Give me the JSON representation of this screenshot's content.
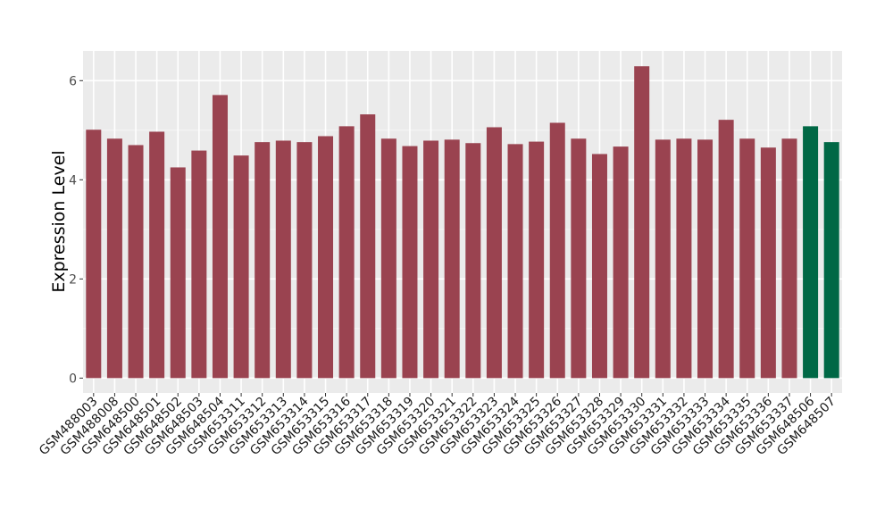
{
  "chart_data": {
    "type": "bar",
    "title": "",
    "xlabel": "",
    "ylabel": "Expression Level",
    "ylim": [
      -0.3,
      6.6
    ],
    "yticks": [
      0,
      2,
      4,
      6
    ],
    "grid": true,
    "categories": [
      "GSM488003",
      "GSM488008",
      "GSM648500",
      "GSM648501",
      "GSM648502",
      "GSM648503",
      "GSM648504",
      "GSM653311",
      "GSM653312",
      "GSM653313",
      "GSM653314",
      "GSM653315",
      "GSM653316",
      "GSM653317",
      "GSM653318",
      "GSM653319",
      "GSM653320",
      "GSM653321",
      "GSM653322",
      "GSM653323",
      "GSM653324",
      "GSM653325",
      "GSM653326",
      "GSM653327",
      "GSM653328",
      "GSM653329",
      "GSM653330",
      "GSM653331",
      "GSM653332",
      "GSM653333",
      "GSM653334",
      "GSM653335",
      "GSM653336",
      "GSM653337",
      "GSM648506",
      "GSM648507"
    ],
    "values": [
      5.01,
      4.83,
      4.7,
      4.97,
      4.25,
      4.59,
      5.71,
      4.49,
      4.76,
      4.79,
      4.76,
      4.88,
      5.08,
      5.32,
      4.83,
      4.68,
      4.79,
      4.81,
      4.74,
      5.06,
      4.72,
      4.77,
      5.15,
      4.83,
      4.52,
      4.67,
      6.29,
      4.81,
      4.83,
      4.81,
      5.21,
      4.83,
      4.65,
      4.83,
      5.08,
      4.76
    ],
    "bar_colors": [
      "#9a4350",
      "#9a4350",
      "#9a4350",
      "#9a4350",
      "#9a4350",
      "#9a4350",
      "#9a4350",
      "#9a4350",
      "#9a4350",
      "#9a4350",
      "#9a4350",
      "#9a4350",
      "#9a4350",
      "#9a4350",
      "#9a4350",
      "#9a4350",
      "#9a4350",
      "#9a4350",
      "#9a4350",
      "#9a4350",
      "#9a4350",
      "#9a4350",
      "#9a4350",
      "#9a4350",
      "#9a4350",
      "#9a4350",
      "#9a4350",
      "#9a4350",
      "#9a4350",
      "#9a4350",
      "#9a4350",
      "#9a4350",
      "#9a4350",
      "#9a4350",
      "#006845",
      "#006845"
    ]
  }
}
